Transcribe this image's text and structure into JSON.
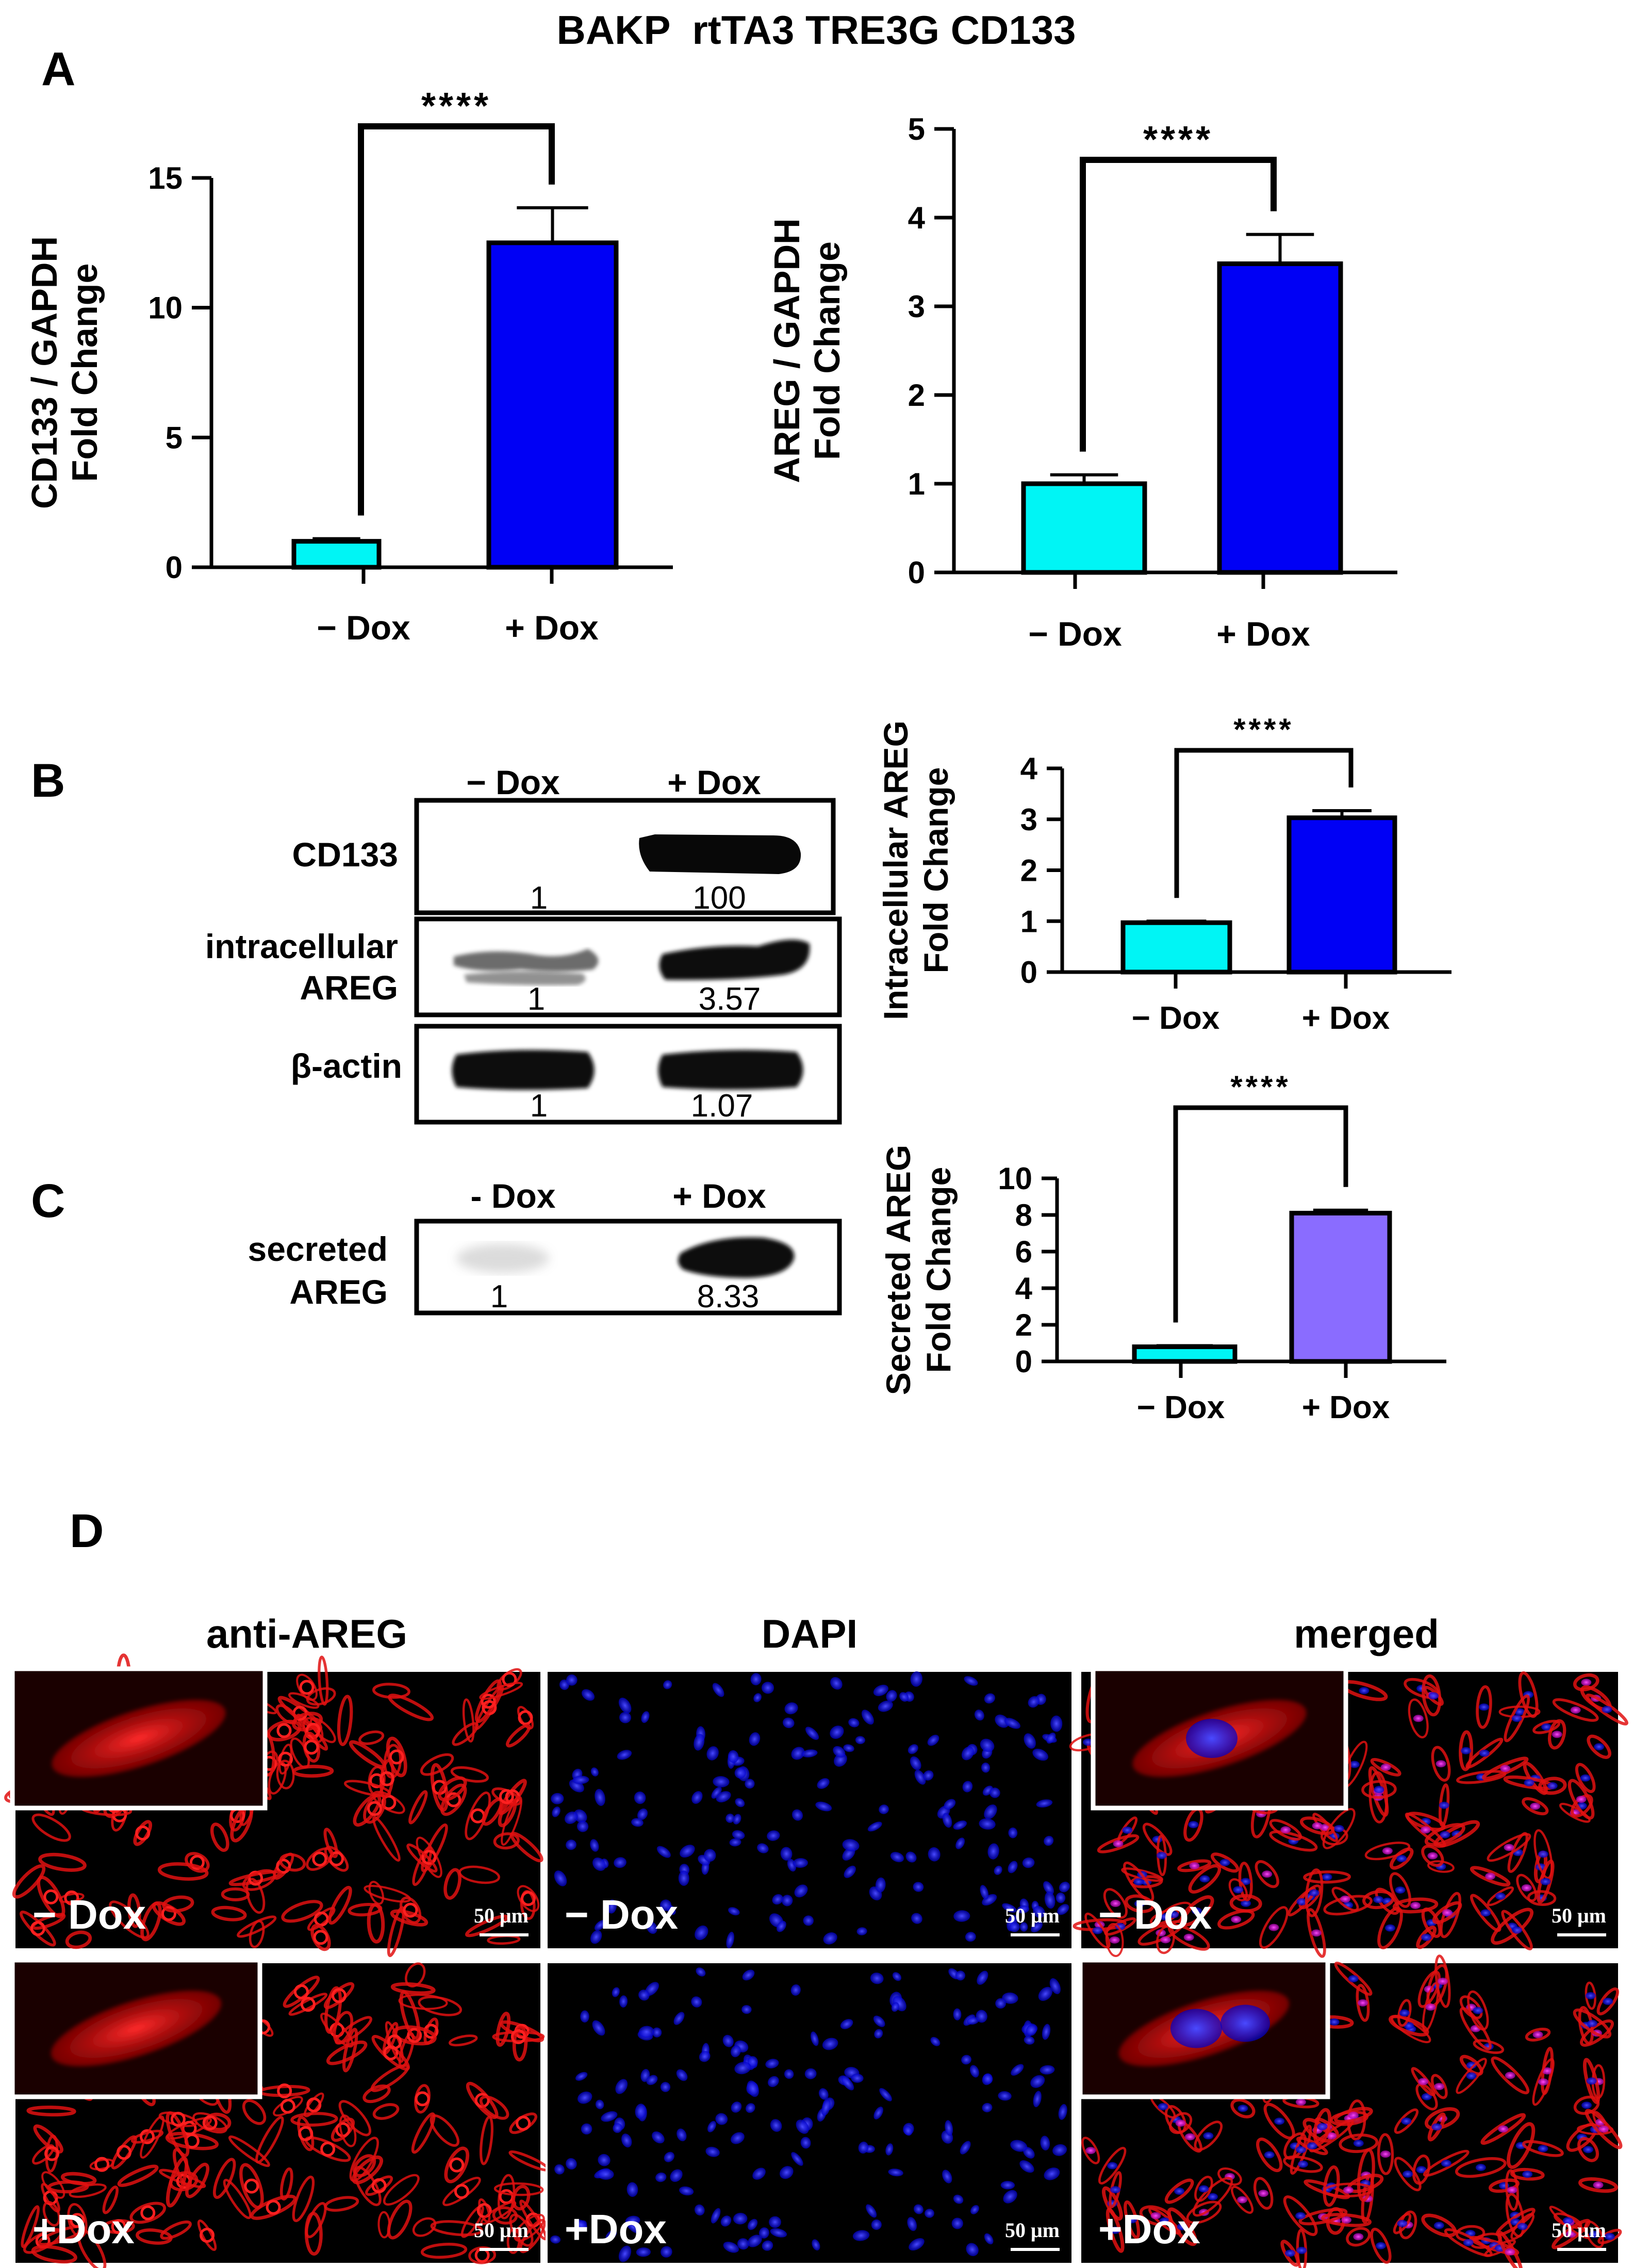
{
  "figure_title": "BAKP  rtTA3 TRE3G CD133",
  "panel_letters": [
    "A",
    "B",
    "C",
    "D"
  ],
  "colors": {
    "cyan": "#00F5F5",
    "blue": "#0000F5",
    "purple": "#8A6CFF",
    "if_red": "#d41010",
    "if_blue": "#1a1aff"
  },
  "chart_data": [
    {
      "type": "bar",
      "ylabel": "CD133 / GAPDH\nFold Change",
      "categories": [
        "− Dox",
        "+ Dox"
      ],
      "values": [
        1.0,
        12.5
      ],
      "errors": [
        0.1,
        1.35
      ],
      "ylim": [
        0,
        15
      ],
      "yticks": [
        0,
        5,
        10,
        15
      ],
      "significance": "****",
      "bar_colors": [
        "#00F5F5",
        "#0000F5"
      ]
    },
    {
      "type": "bar",
      "ylabel": "AREG / GAPDH\nFold Change",
      "categories": [
        "− Dox",
        "+ Dox"
      ],
      "values": [
        1.0,
        3.48
      ],
      "errors": [
        0.1,
        0.33
      ],
      "ylim": [
        0,
        5
      ],
      "yticks": [
        0,
        1,
        2,
        3,
        4,
        5
      ],
      "significance": "****",
      "bar_colors": [
        "#00F5F5",
        "#0000F5"
      ]
    },
    {
      "type": "bar",
      "ylabel": "Intracellular AREG\nFold Change",
      "categories": [
        "− Dox",
        "+ Dox"
      ],
      "values": [
        0.97,
        3.03
      ],
      "errors": [
        0.03,
        0.14
      ],
      "ylim": [
        0,
        4
      ],
      "yticks": [
        0,
        1,
        2,
        3,
        4
      ],
      "significance": "****",
      "bar_colors": [
        "#00F5F5",
        "#0000F5"
      ]
    },
    {
      "type": "bar",
      "ylabel": "Secreted AREG\nFold Change",
      "categories": [
        "− Dox",
        "+ Dox"
      ],
      "values": [
        0.8,
        8.1
      ],
      "errors": [
        0.06,
        0.16
      ],
      "ylim": [
        0,
        10
      ],
      "yticks": [
        0,
        2,
        4,
        6,
        8,
        10
      ],
      "significance": "****",
      "bar_colors": [
        "#00F5F5",
        "#8A6CFF"
      ]
    }
  ],
  "western_B": {
    "header": [
      "− Dox",
      "+ Dox"
    ],
    "rows": [
      {
        "label": "CD133",
        "values": [
          "1",
          "100"
        ]
      },
      {
        "label": "intracellular\nAREG",
        "values": [
          "1",
          "3.57"
        ]
      },
      {
        "label": "β-actin",
        "values": [
          "1",
          "1.07"
        ]
      }
    ]
  },
  "western_C": {
    "header": [
      "- Dox",
      "+ Dox"
    ],
    "label": "secreted\nAREG",
    "values": [
      "1",
      "8.33"
    ]
  },
  "panel_D": {
    "columns": [
      "anti-AREG",
      "DAPI",
      "merged"
    ],
    "row_labels": [
      "− Dox",
      "+Dox"
    ],
    "scale_bar": "50 μm"
  }
}
